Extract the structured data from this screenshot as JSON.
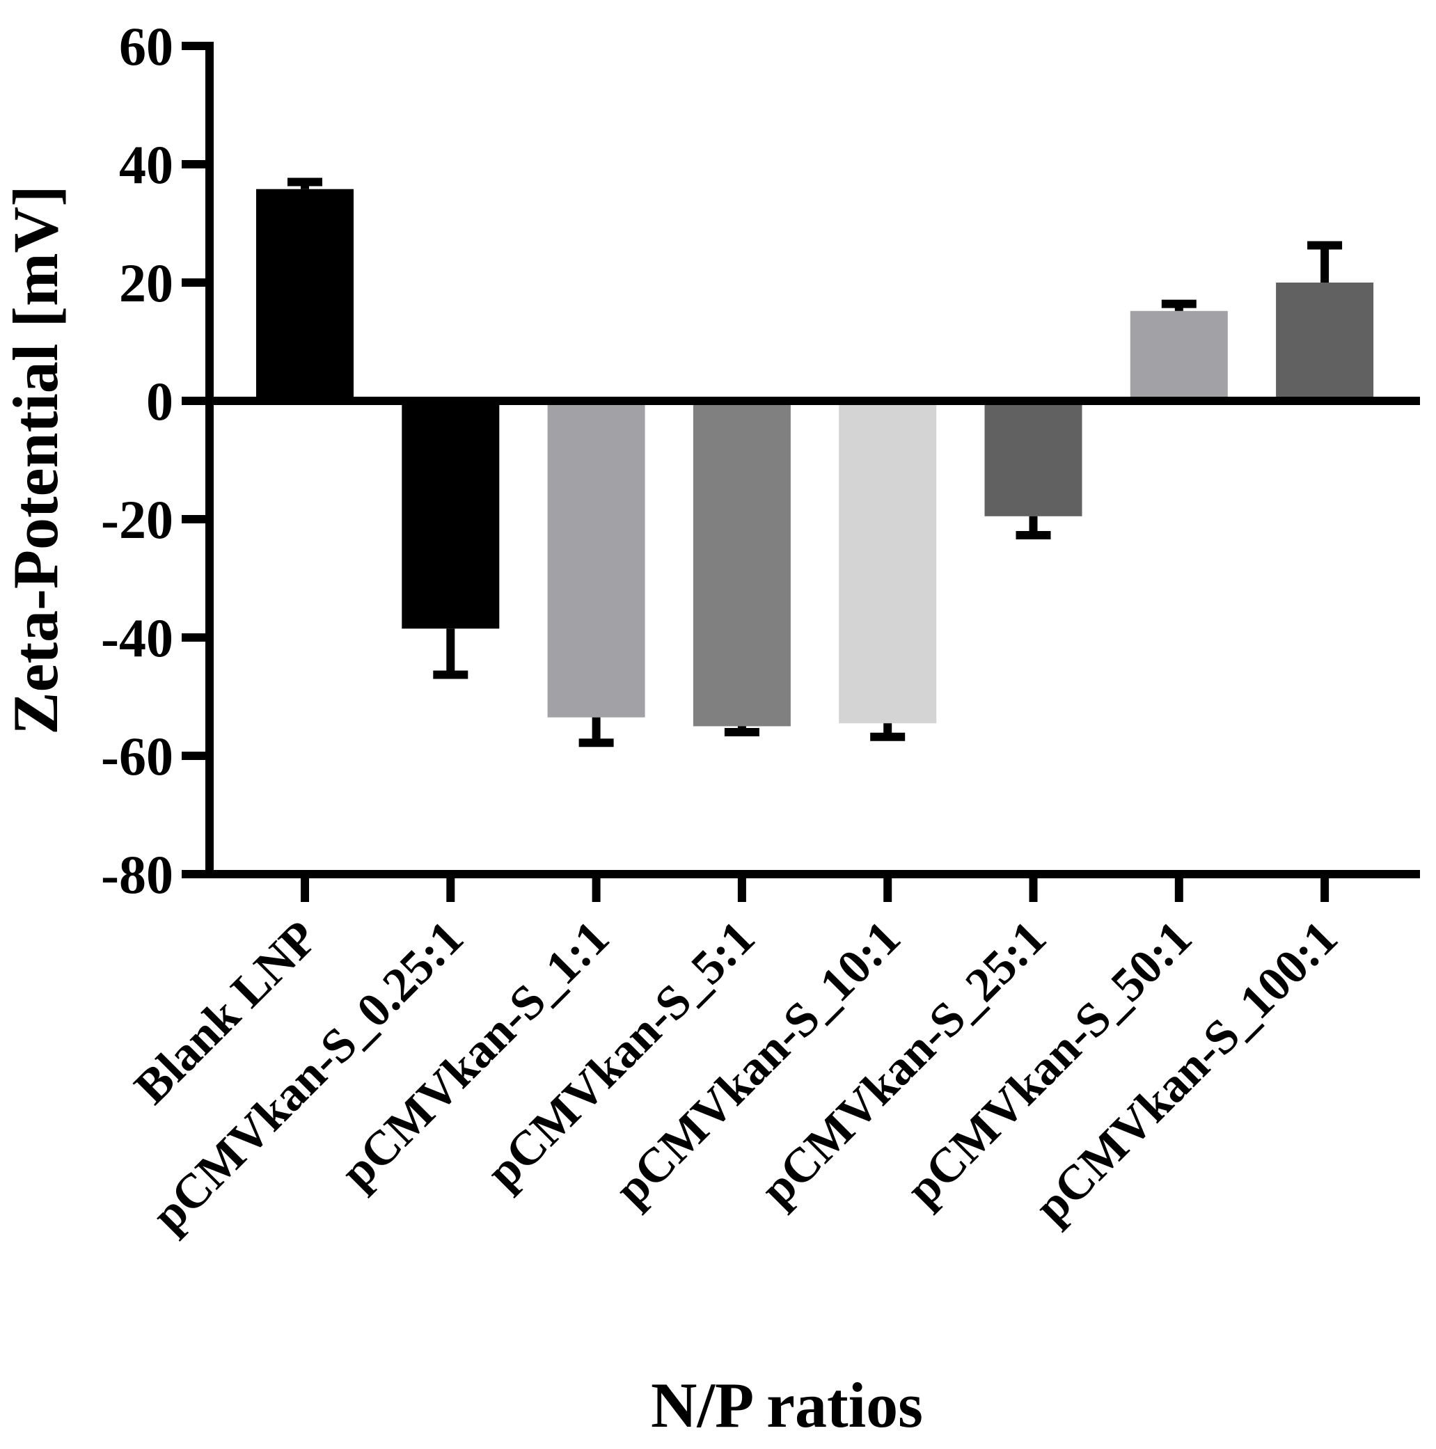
{
  "chart_data": {
    "type": "bar",
    "title": "",
    "xlabel": "N/P ratios",
    "ylabel": "Zeta-Potential [mV]",
    "ylim": [
      -80,
      60
    ],
    "yticks": [
      60,
      40,
      20,
      0,
      -20,
      -40,
      -60,
      -80
    ],
    "ytick_labels": [
      "60",
      "40",
      "20",
      "0",
      "-20",
      "-40",
      "-60",
      "-80"
    ],
    "categories": [
      "Blank LNP",
      "pCMVkan-S_0.25:1",
      "pCMVkan-S_1:1",
      "pCMVkan-S_5:1",
      "pCMVkan-S_10:1",
      "pCMVkan-S_25:1",
      "pCMVkan-S_50:1",
      "pCMVkan-S_100:1"
    ],
    "values": [
      35.8,
      -38.5,
      -53.5,
      -55.0,
      -54.5,
      -19.5,
      15.2,
      20.0
    ],
    "errors": [
      1.2,
      7.8,
      4.3,
      1.0,
      2.3,
      3.2,
      1.2,
      6.3
    ],
    "colors": [
      "#000000",
      "#000000",
      "#a2a2a6",
      "#808080",
      "#d4d4d4",
      "#616161",
      "#a2a2a6",
      "#616161"
    ],
    "grid": false,
    "legend": "none"
  }
}
